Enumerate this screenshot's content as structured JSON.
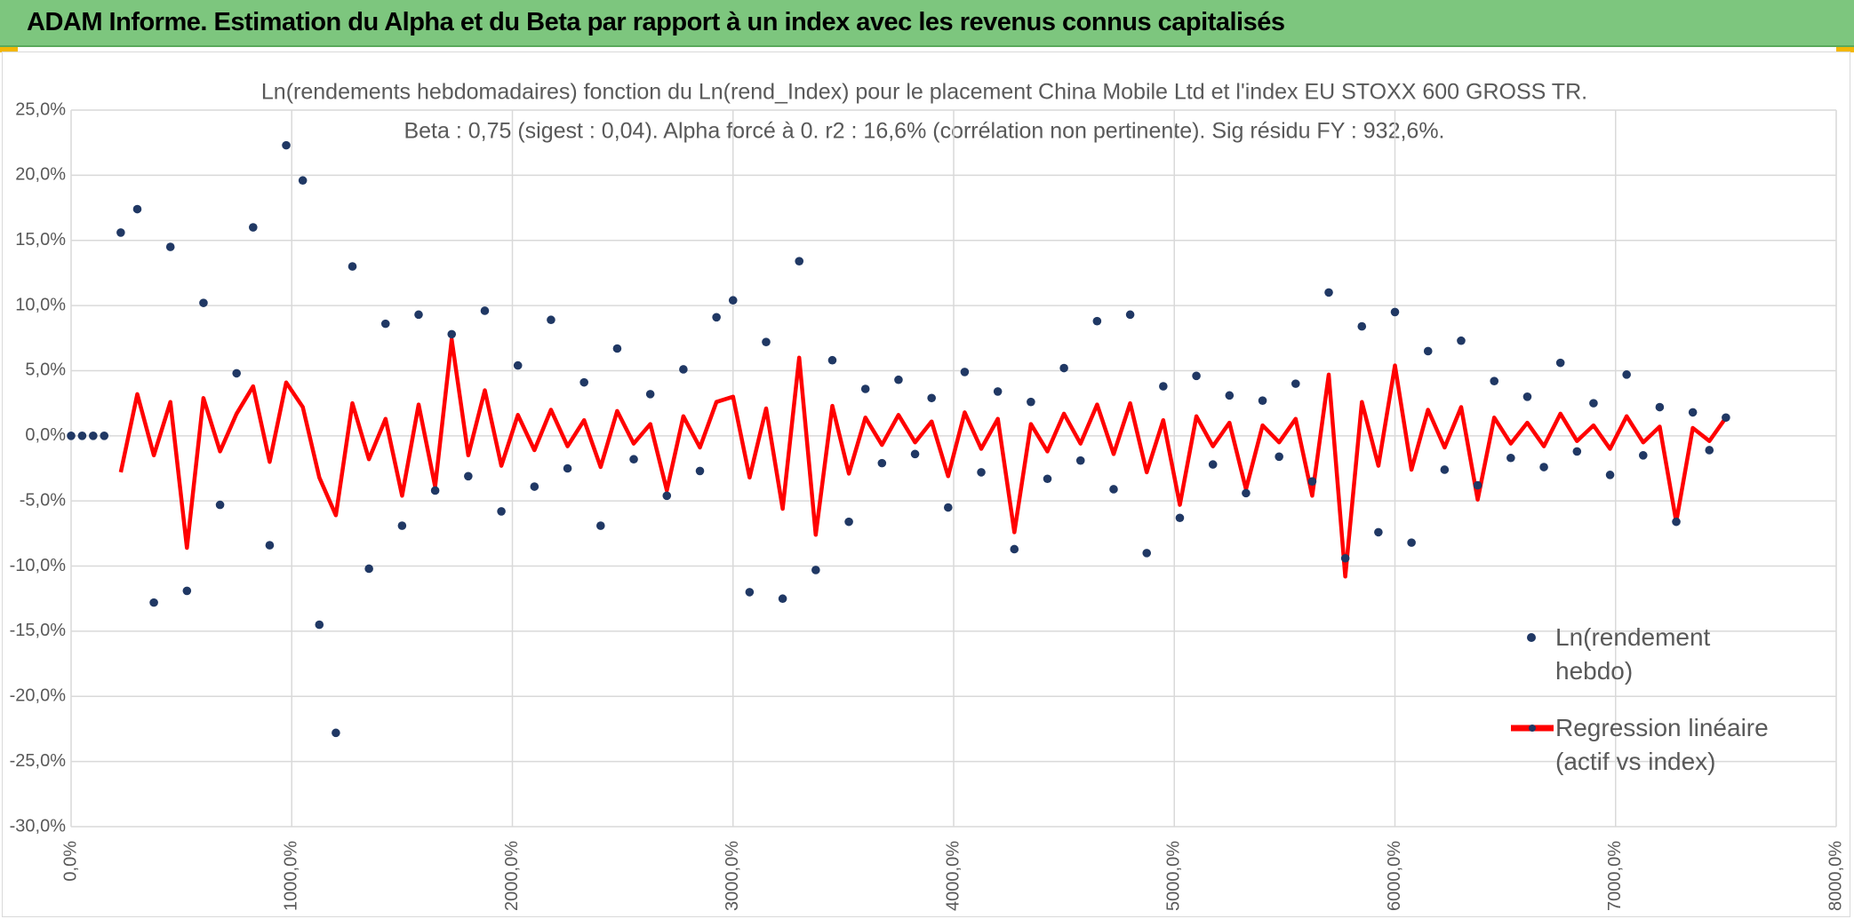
{
  "header": {
    "title": "ADAM Informe. Estimation du Alpha et du Beta par rapport à un index avec les revenus connus capitalisés"
  },
  "chart_data": {
    "type": "scatter",
    "title": "Ln(rendements hebdomadaires) fonction du Ln(rend_Index) pour le placement China Mobile Ltd et l'index EU STOXX 600 GROSS TR.",
    "subtitle": "Beta : 0,75 (sigest : 0,04). Alpha forcé à 0. r2 : 16,6% (corrélation non pertinente). Sig résidu FY : 932,6%.",
    "xlim": [
      0,
      8000
    ],
    "xticks": [
      {
        "value": 0,
        "label": "0,0%"
      },
      {
        "value": 1000,
        "label": "1000,0%"
      },
      {
        "value": 2000,
        "label": "2000,0%"
      },
      {
        "value": 3000,
        "label": "3000,0%"
      },
      {
        "value": 4000,
        "label": "4000,0%"
      },
      {
        "value": 5000,
        "label": "5000,0%"
      },
      {
        "value": 6000,
        "label": "6000,0%"
      },
      {
        "value": 7000,
        "label": "7000,0%"
      },
      {
        "value": 8000,
        "label": "8000,0%"
      }
    ],
    "ylim": [
      -30,
      25
    ],
    "yticks": [
      {
        "value": -30,
        "label": "-30,0%"
      },
      {
        "value": -25,
        "label": "-25,0%"
      },
      {
        "value": -20,
        "label": "-20,0%"
      },
      {
        "value": -15,
        "label": "-15,0%"
      },
      {
        "value": -10,
        "label": "-10,0%"
      },
      {
        "value": -5,
        "label": "-5,0%"
      },
      {
        "value": 0,
        "label": "0,0%"
      },
      {
        "value": 5,
        "label": "5,0%"
      },
      {
        "value": 10,
        "label": "10,0%"
      },
      {
        "value": 15,
        "label": "15,0%"
      },
      {
        "value": 20,
        "label": "20,0%"
      },
      {
        "value": 25,
        "label": "25,0%"
      }
    ],
    "grid": true,
    "legend": "right",
    "x": [
      0,
      50,
      100,
      150,
      225,
      300,
      375,
      450,
      525,
      600,
      675,
      750,
      825,
      900,
      975,
      1050,
      1125,
      1200,
      1275,
      1350,
      1425,
      1500,
      1575,
      1650,
      1725,
      1800,
      1875,
      1950,
      2025,
      2100,
      2175,
      2250,
      2325,
      2400,
      2475,
      2550,
      2625,
      2700,
      2775,
      2850,
      2925,
      3000,
      3075,
      3150,
      3225,
      3300,
      3375,
      3450,
      3525,
      3600,
      3675,
      3750,
      3825,
      3900,
      3975,
      4050,
      4125,
      4200,
      4275,
      4350,
      4425,
      4500,
      4575,
      4650,
      4725,
      4800,
      4875,
      4950,
      5025,
      5100,
      5175,
      5250,
      5325,
      5400,
      5475,
      5550,
      5625,
      5700,
      5775,
      5850,
      5925,
      6000,
      6075,
      6150,
      6225,
      6300,
      6375,
      6450,
      6525,
      6600,
      6675,
      6750,
      6825,
      6900,
      6975,
      7050,
      7125,
      7200,
      7275,
      7350,
      7425,
      7500
    ],
    "series": [
      {
        "name": "Ln(rendement hebdo)",
        "color": "#203864",
        "style": "points",
        "values": [
          0,
          0,
          0,
          0,
          15.6,
          17.4,
          -12.8,
          14.5,
          -11.9,
          10.2,
          -5.3,
          4.8,
          16.0,
          -8.4,
          22.3,
          19.6,
          -14.5,
          -22.8,
          13.0,
          -10.2,
          8.6,
          -6.9,
          9.3,
          -4.2,
          7.8,
          -3.1,
          9.6,
          -5.8,
          5.4,
          -3.9,
          8.9,
          -2.5,
          4.1,
          -6.9,
          6.7,
          -1.8,
          3.2,
          -4.6,
          5.1,
          -2.7,
          9.1,
          10.4,
          -12.0,
          7.2,
          -12.5,
          13.4,
          -10.3,
          5.8,
          -6.6,
          3.6,
          -2.1,
          4.3,
          -1.4,
          2.9,
          -5.5,
          4.9,
          -2.8,
          3.4,
          -8.7,
          2.6,
          -3.3,
          5.2,
          -1.9,
          8.8,
          -4.1,
          9.3,
          -9.0,
          3.8,
          -6.3,
          4.6,
          -2.2,
          3.1,
          -4.4,
          2.7,
          -1.6,
          4.0,
          -3.5,
          11.0,
          -9.4,
          8.4,
          -7.4,
          9.5,
          -8.2,
          6.5,
          -2.6,
          7.3,
          -3.8,
          4.2,
          -1.7,
          3.0,
          -2.4,
          5.6,
          -1.2,
          2.5,
          -3.0,
          4.7,
          -1.5,
          2.2,
          -6.6,
          1.8,
          -1.1,
          1.4
        ]
      },
      {
        "name": "Regression linéaire (actif vs index)",
        "color": "#ff0000",
        "style": "line",
        "values": [
          null,
          null,
          null,
          null,
          -2.8,
          3.2,
          -1.5,
          2.6,
          -8.6,
          2.9,
          -1.2,
          1.7,
          3.8,
          -2.0,
          4.1,
          2.2,
          -3.2,
          -6.1,
          2.5,
          -1.8,
          1.3,
          -4.6,
          2.4,
          -3.9,
          7.4,
          -1.5,
          3.5,
          -2.3,
          1.6,
          -1.1,
          2.0,
          -0.8,
          1.2,
          -2.4,
          1.9,
          -0.6,
          0.9,
          -4.2,
          1.5,
          -0.9,
          2.6,
          3.0,
          -3.2,
          2.1,
          -5.6,
          6.0,
          -7.6,
          2.3,
          -2.9,
          1.4,
          -0.7,
          1.6,
          -0.5,
          1.1,
          -3.1,
          1.8,
          -1.0,
          1.3,
          -7.4,
          0.9,
          -1.2,
          1.7,
          -0.6,
          2.4,
          -1.4,
          2.5,
          -2.8,
          1.2,
          -5.3,
          1.5,
          -0.8,
          1.0,
          -4.1,
          0.8,
          -0.5,
          1.3,
          -4.6,
          4.7,
          -10.8,
          2.6,
          -2.3,
          5.4,
          -2.6,
          2.0,
          -0.9,
          2.2,
          -4.9,
          1.4,
          -0.6,
          1.0,
          -0.8,
          1.7,
          -0.4,
          0.8,
          -1.0,
          1.5,
          -0.5,
          0.7,
          -6.6,
          0.6,
          -0.4,
          1.4
        ]
      }
    ]
  }
}
